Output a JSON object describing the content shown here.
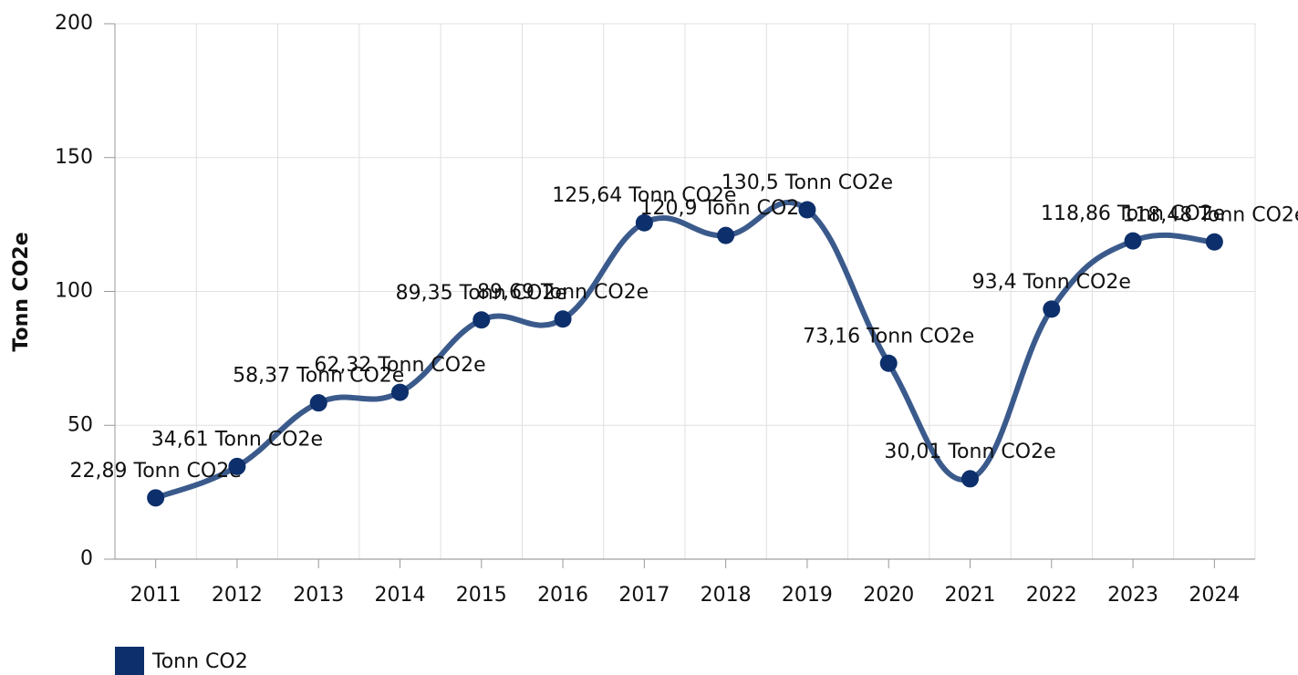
{
  "chart_data": {
    "type": "line",
    "y_label": "Tonn CO2e",
    "categories": [
      "2011",
      "2012",
      "2013",
      "2014",
      "2015",
      "2016",
      "2017",
      "2018",
      "2019",
      "2020",
      "2021",
      "2022",
      "2023",
      "2024"
    ],
    "series": [
      {
        "name": "Tonn CO2",
        "color": "#0d2f6b",
        "line_color": "#3b5a8c",
        "values": [
          22.89,
          34.61,
          58.37,
          62.32,
          89.35,
          89.69,
          125.64,
          120.9,
          130.5,
          73.16,
          30.01,
          93.4,
          118.86,
          118.48
        ],
        "value_labels": [
          "22,89 Tonn CO2e",
          "34,61 Tonn CO2e",
          "58,37 Tonn CO2e",
          "62,32 Tonn CO2e",
          "89,35 Tonn CO2e",
          "89,69 Tonn CO2e",
          "125,64 Tonn CO2e",
          "120,9 Tonn CO2e",
          "130,5 Tonn CO2e",
          "73,16 Tonn CO2e",
          "30,01 Tonn CO2e",
          "93,4 Tonn CO2e",
          "118,86 Tonn CO2e",
          "118,48 Tonn CO2e"
        ]
      }
    ],
    "ylim": [
      0,
      200
    ],
    "yticks": [
      0,
      50,
      100,
      150,
      200
    ],
    "grid": true,
    "legend": "bottom-left"
  }
}
